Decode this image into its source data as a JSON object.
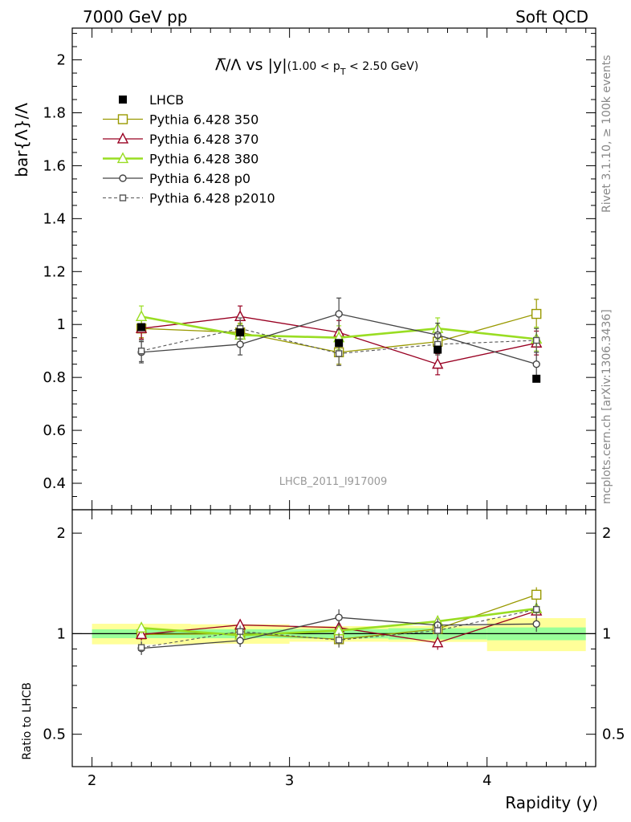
{
  "header": {
    "left": "7000 GeV pp",
    "right": "Soft QCD"
  },
  "side_texts": {
    "rivet": "Rivet 3.1.10, ≥ 100k events",
    "source": "mcplots.cern.ch [arXiv:1306.3436]"
  },
  "watermark": "LHCB_2011_I917009",
  "chart_data": {
    "type": "line",
    "title": {
      "main": "Λ̅/Λ vs |y|",
      "cut": "(1.00 < p",
      "cut_sub": "T",
      "cut_end": " < 2.50 GeV)"
    },
    "xlabel": "Rapidity (y)",
    "ylabel": "bar{Λ}/Λ",
    "ratio_ylabel": "Ratio to LHCB",
    "xlim": [
      1.9,
      4.55
    ],
    "ylim": [
      0.3,
      2.12
    ],
    "ratio_ylim": [
      0.4,
      2.35
    ],
    "x_ticks": [
      2,
      3,
      4
    ],
    "x_tick_labels": [
      "2",
      "3",
      "4"
    ],
    "y_ticks": [
      0.4,
      0.6,
      0.8,
      1.0,
      1.2,
      1.4,
      1.6,
      1.8,
      2.0
    ],
    "y_tick_labels": [
      "0.4",
      "0.6",
      "0.8",
      "1",
      "1.2",
      "1.4",
      "1.6",
      "1.8",
      "2"
    ],
    "ratio_ticks": [
      0.5,
      1,
      2
    ],
    "ratio_tick_labels": [
      "0.5",
      "1",
      "2"
    ],
    "x": [
      2.25,
      2.75,
      3.25,
      3.75,
      4.25
    ],
    "data": {
      "name": "LHCB",
      "values": [
        0.99,
        0.97,
        0.93,
        0.905,
        0.795
      ],
      "band_inner": [
        0.03,
        0.03,
        0.03,
        0.035,
        0.035
      ],
      "band_outer": [
        0.07,
        0.065,
        0.05,
        0.05,
        0.09
      ],
      "color": "#000000"
    },
    "series": [
      {
        "name": "Pythia 6.428 350",
        "color": "#999900",
        "marker": "square-open",
        "dash": false,
        "width": 1.3,
        "values": [
          0.985,
          0.97,
          0.895,
          0.935,
          1.04
        ],
        "errors": [
          0.035,
          0.035,
          0.045,
          0.045,
          0.055
        ]
      },
      {
        "name": "Pythia 6.428 370",
        "color": "#990022",
        "marker": "triangle-open",
        "dash": false,
        "width": 1.3,
        "values": [
          0.985,
          1.03,
          0.97,
          0.85,
          0.93
        ],
        "errors": [
          0.04,
          0.04,
          0.045,
          0.04,
          0.045
        ]
      },
      {
        "name": "Pythia 6.428 380",
        "color": "#99dd22",
        "marker": "triangle-open",
        "dash": false,
        "width": 2.6,
        "values": [
          1.03,
          0.96,
          0.95,
          0.985,
          0.945
        ],
        "errors": [
          0.04,
          0.04,
          0.045,
          0.04,
          0.045
        ]
      },
      {
        "name": "Pythia 6.428 p0",
        "color": "#444444",
        "marker": "circle-open",
        "dash": false,
        "width": 1.3,
        "values": [
          0.895,
          0.925,
          1.04,
          0.96,
          0.85
        ],
        "errors": [
          0.04,
          0.04,
          0.06,
          0.045,
          0.045
        ]
      },
      {
        "name": "Pythia 6.428 p2010",
        "color": "#555555",
        "marker": "square-open-small",
        "dash": true,
        "width": 1.1,
        "values": [
          0.9,
          0.985,
          0.89,
          0.925,
          0.94
        ],
        "errors": [
          0.04,
          0.04,
          0.045,
          0.04,
          0.045
        ]
      }
    ],
    "legend_position": "top-left",
    "grid": false
  }
}
